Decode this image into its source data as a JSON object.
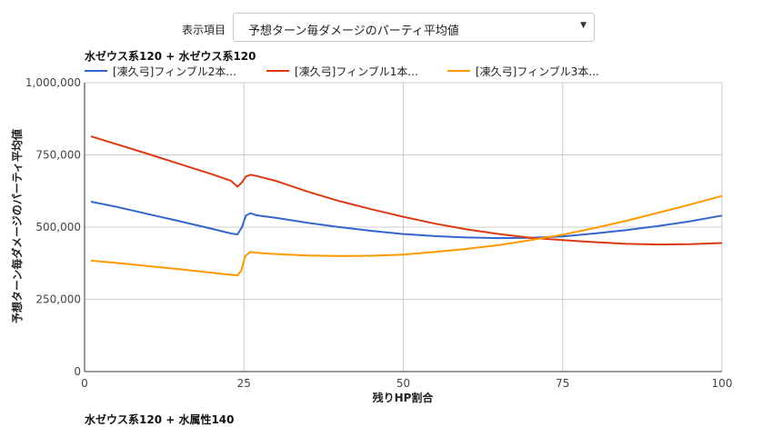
{
  "selector": {
    "label": "表示項目",
    "value": "予想ターン毎ダメージのパーティ平均値",
    "arrow": "▼"
  },
  "chart_title": "水ゼウス系120 + 水ゼウス系120",
  "next_chart_title": "水ゼウス系120 + 水属性140",
  "colors": {
    "blue": "#3366cc",
    "red": "#dc3912",
    "orange": "#ff9900",
    "grid": "#cccccc"
  },
  "chart_data": {
    "type": "line",
    "title": "水ゼウス系120 + 水ゼウス系120",
    "xlabel": "残りHP割合",
    "ylabel": "予想ターン毎ダメージのパーティ平均値",
    "xlim": [
      0,
      100
    ],
    "ylim": [
      0,
      1000000
    ],
    "x_ticks": [
      0,
      25,
      50,
      75,
      100
    ],
    "y_ticks": [
      0,
      250000,
      500000,
      750000,
      1000000
    ],
    "x_tick_labels": [
      "0",
      "25",
      "50",
      "75",
      "100"
    ],
    "y_tick_labels": [
      "0",
      "250,000",
      "500,000",
      "750,000",
      "1,000,000"
    ],
    "grid": true,
    "legend_position": "top",
    "series": [
      {
        "name": "[凍久弓]フィンブル2本...",
        "color": "#3366cc",
        "points": [
          [
            1,
            588000
          ],
          [
            5,
            570000
          ],
          [
            10,
            545000
          ],
          [
            15,
            520000
          ],
          [
            20,
            494000
          ],
          [
            23,
            478000
          ],
          [
            24,
            475000
          ],
          [
            24.7,
            500000
          ],
          [
            25.3,
            540000
          ],
          [
            26,
            548000
          ],
          [
            27,
            541000
          ],
          [
            30,
            532000
          ],
          [
            35,
            515000
          ],
          [
            40,
            500000
          ],
          [
            45,
            487000
          ],
          [
            50,
            476000
          ],
          [
            55,
            469000
          ],
          [
            60,
            464000
          ],
          [
            65,
            462000
          ],
          [
            70,
            463000
          ],
          [
            75,
            468000
          ],
          [
            80,
            478000
          ],
          [
            85,
            490000
          ],
          [
            90,
            504000
          ],
          [
            95,
            520000
          ],
          [
            100,
            540000
          ]
        ]
      },
      {
        "name": "[凍久弓]フィンブル1本...",
        "color": "#dc3912",
        "points": [
          [
            1,
            814000
          ],
          [
            5,
            787000
          ],
          [
            10,
            753000
          ],
          [
            15,
            718000
          ],
          [
            20,
            683000
          ],
          [
            23,
            660000
          ],
          [
            24,
            640000
          ],
          [
            24.7,
            655000
          ],
          [
            25.3,
            675000
          ],
          [
            26,
            681000
          ],
          [
            27,
            677000
          ],
          [
            30,
            660000
          ],
          [
            35,
            623000
          ],
          [
            40,
            590000
          ],
          [
            45,
            562000
          ],
          [
            50,
            536000
          ],
          [
            55,
            512000
          ],
          [
            60,
            492000
          ],
          [
            65,
            476000
          ],
          [
            70,
            463000
          ],
          [
            75,
            455000
          ],
          [
            80,
            448000
          ],
          [
            85,
            442000
          ],
          [
            90,
            440000
          ],
          [
            95,
            441000
          ],
          [
            100,
            445000
          ]
        ]
      },
      {
        "name": "[凍久弓]フィンブル3本...",
        "color": "#ff9900",
        "points": [
          [
            1,
            384000
          ],
          [
            5,
            376000
          ],
          [
            10,
            365000
          ],
          [
            15,
            354000
          ],
          [
            20,
            342000
          ],
          [
            23,
            335000
          ],
          [
            24,
            333000
          ],
          [
            24.6,
            350000
          ],
          [
            25.2,
            400000
          ],
          [
            26,
            414000
          ],
          [
            27,
            411000
          ],
          [
            30,
            407000
          ],
          [
            35,
            402000
          ],
          [
            40,
            400000
          ],
          [
            45,
            401000
          ],
          [
            50,
            405000
          ],
          [
            55,
            414000
          ],
          [
            60,
            425000
          ],
          [
            65,
            438000
          ],
          [
            70,
            455000
          ],
          [
            75,
            474000
          ],
          [
            80,
            497000
          ],
          [
            85,
            522000
          ],
          [
            90,
            550000
          ],
          [
            95,
            578000
          ],
          [
            100,
            608000
          ]
        ]
      }
    ]
  }
}
